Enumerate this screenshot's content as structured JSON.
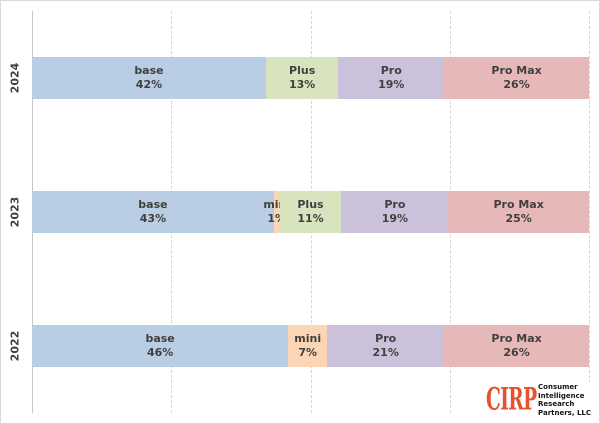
{
  "chart_data": {
    "type": "bar",
    "orientation": "horizontal_stacked",
    "stack_unit": "percent",
    "title": "",
    "xlabel": "",
    "ylabel": "",
    "xlim": [
      0,
      100
    ],
    "gridlines_pct": [
      0,
      25,
      50,
      75,
      100
    ],
    "grid": "vertical-dashed",
    "legend": "none",
    "categories": [
      "2024",
      "2023",
      "2022"
    ],
    "colors": {
      "base": "#B9CDE5",
      "mini": "#FCD5B4",
      "Plus": "#D7E4BD",
      "Pro": "#CCC1DA",
      "Pro Max": "#E6B9B8"
    },
    "text_color": "#404040",
    "rows": [
      {
        "year": "2024",
        "segments": [
          {
            "key": "base",
            "label": "base",
            "pct": 42,
            "pct_label": "42%"
          },
          {
            "key": "Plus",
            "label": "Plus",
            "pct": 13,
            "pct_label": "13%"
          },
          {
            "key": "Pro",
            "label": "Pro",
            "pct": 19,
            "pct_label": "19%"
          },
          {
            "key": "Pro Max",
            "label": "Pro Max",
            "pct": 26,
            "pct_label": "26%"
          }
        ]
      },
      {
        "year": "2023",
        "segments": [
          {
            "key": "base",
            "label": "base",
            "pct": 43,
            "pct_label": "43%"
          },
          {
            "key": "mini",
            "label": "mini",
            "pct": 1,
            "pct_label": "1%"
          },
          {
            "key": "Plus",
            "label": "Plus",
            "pct": 11,
            "pct_label": "11%"
          },
          {
            "key": "Pro",
            "label": "Pro",
            "pct": 19,
            "pct_label": "19%"
          },
          {
            "key": "Pro Max",
            "label": "Pro Max",
            "pct": 25,
            "pct_label": "25%"
          }
        ]
      },
      {
        "year": "2022",
        "segments": [
          {
            "key": "base",
            "label": "base",
            "pct": 46,
            "pct_label": "46%"
          },
          {
            "key": "mini",
            "label": "mini",
            "pct": 7,
            "pct_label": "7%"
          },
          {
            "key": "Pro",
            "label": "Pro",
            "pct": 21,
            "pct_label": "21%"
          },
          {
            "key": "Pro Max",
            "label": "Pro Max",
            "pct": 26,
            "pct_label": "26%"
          }
        ]
      }
    ]
  },
  "logo": {
    "acronym": "CIRP",
    "lines": [
      "Consumer",
      "Intelligence",
      "Research",
      "Partners, LLC"
    ],
    "accent_color": "#E8512D"
  }
}
